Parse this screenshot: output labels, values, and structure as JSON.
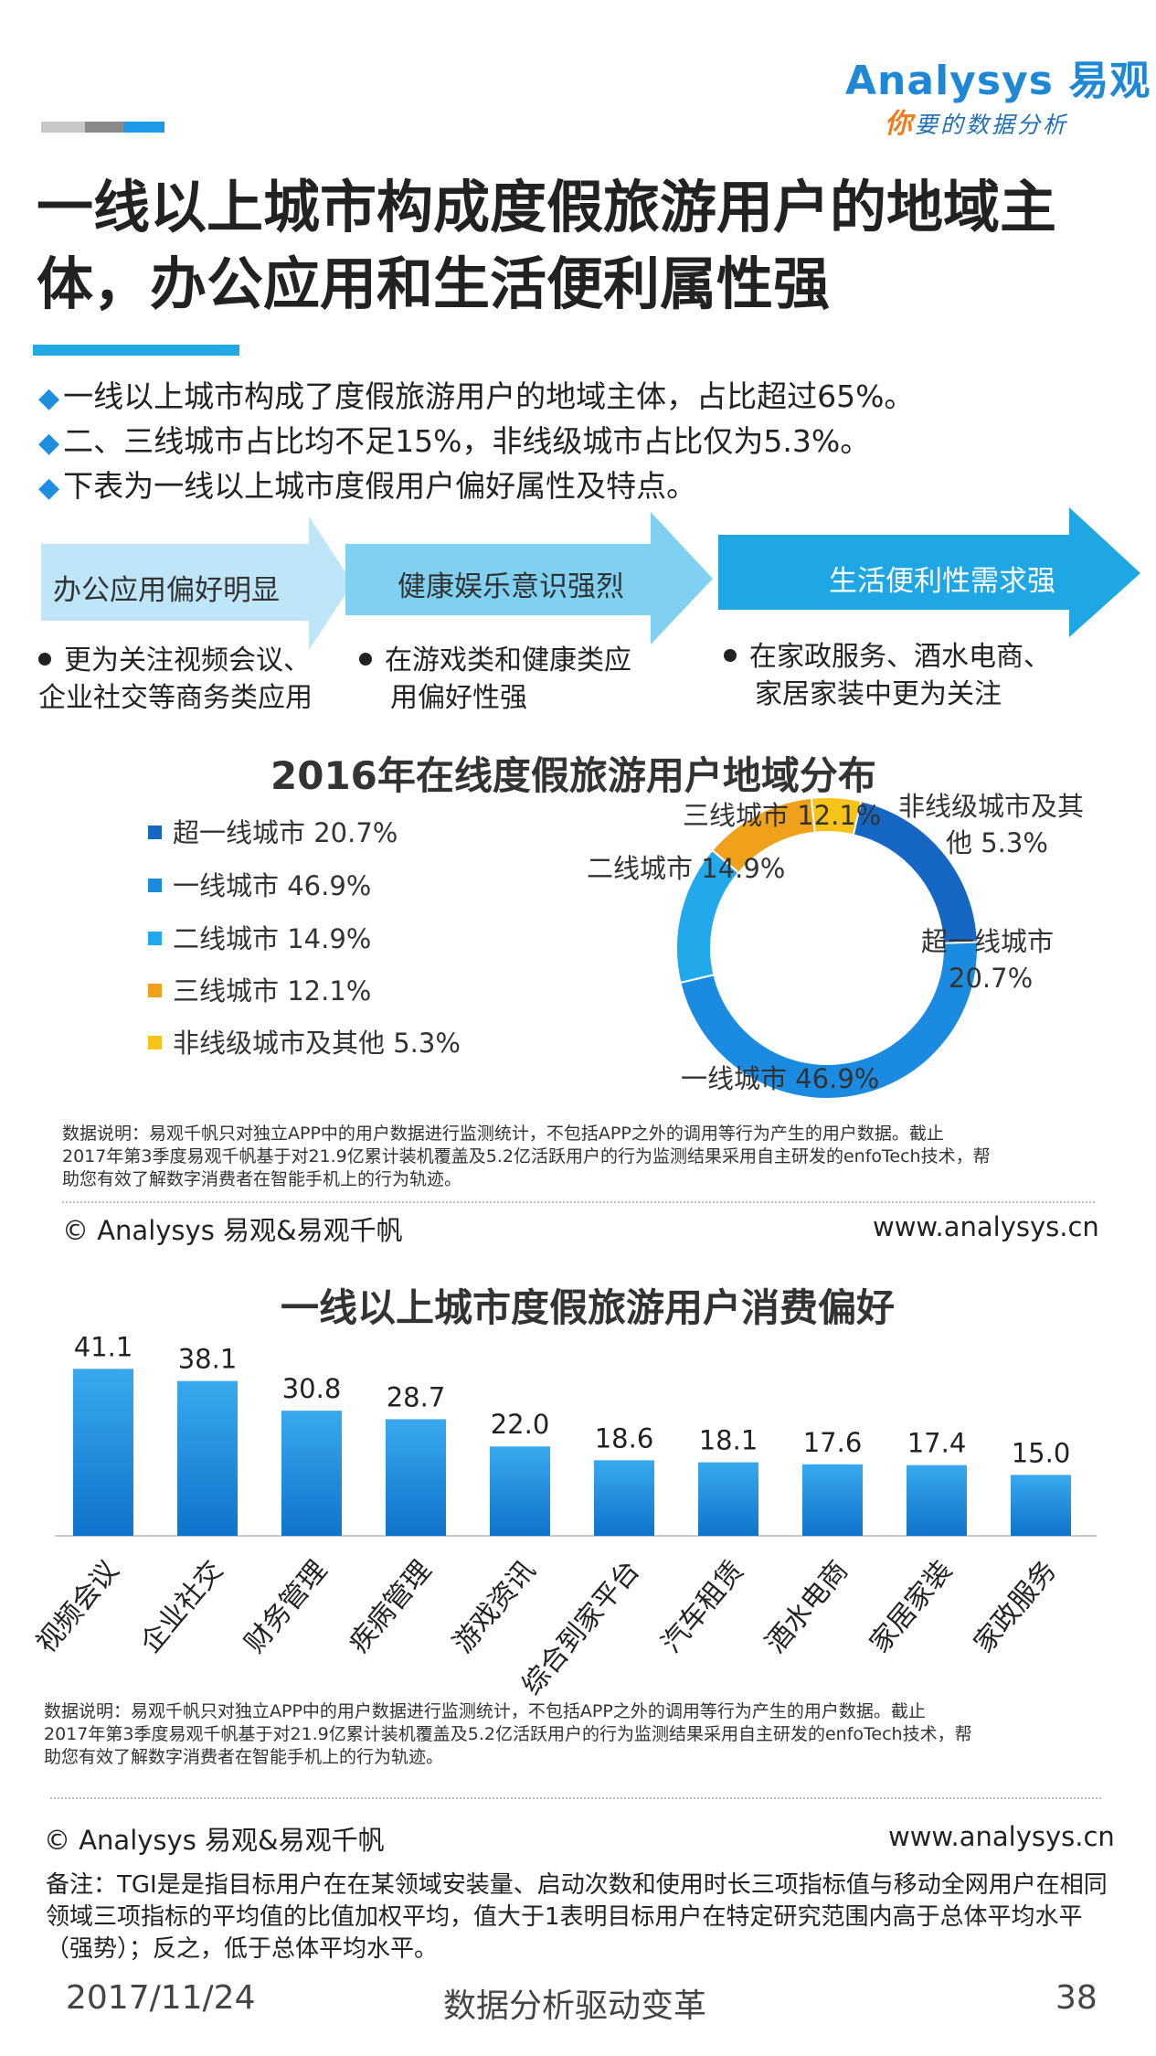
{
  "brand": {
    "logo": "Analysys 易观",
    "slogan_first": "你",
    "slogan_rest": "要的数据分析",
    "colors": {
      "primary": "#1e88d6",
      "accent": "#f07d1d"
    }
  },
  "title": "一线以上城市构成度假旅游用户的地域主体，办公应用和生活便利属性强",
  "bullets": [
    "一线以上城市构成了度假旅游用户的地域主体，占比超过65%。",
    "二、三线城市占比均不足15%，非线级城市占比仅为5.3%。",
    "下表为一线以上城市度假用户偏好属性及特点。"
  ],
  "bullet_marker": "◆",
  "features": [
    {
      "label": "办公应用偏好明显",
      "points": [
        "更为关注视频会议、",
        "企业社交等商务类应用"
      ],
      "color": "#bfe6f8"
    },
    {
      "label": "健康娱乐意识强烈",
      "points": [
        "在游戏类和健康类应",
        "用偏好性强"
      ],
      "color": "#7fd0f1"
    },
    {
      "label": "生活便利性需求强",
      "points": [
        "在家政服务、酒水电商、",
        "家居家装中更为关注"
      ],
      "color": "#1fa6e4"
    }
  ],
  "chart_data": [
    {
      "type": "pie",
      "donut": true,
      "title": "2016年在线度假旅游用户地域分布",
      "labels": [
        "超一线城市",
        "一线城市",
        "二线城市",
        "三线城市",
        "非线级城市及其他"
      ],
      "values": [
        20.7,
        46.9,
        14.9,
        12.1,
        5.3
      ],
      "unit": "%",
      "colors": [
        "#1666c4",
        "#1a8be0",
        "#21a9ec",
        "#f0a11c",
        "#f7c319"
      ],
      "legend": [
        "超一线城市 20.7%",
        "一线城市 46.9%",
        "二线城市 14.9%",
        "三线城市 12.1%",
        "非线级城市及其他 5.3%"
      ],
      "legend_position": "left",
      "slice_labels": {
        "super_tier1": [
          "超一线城市",
          "20.7%"
        ],
        "tier1": "一线城市 46.9%",
        "tier2": "二线城市 14.9%",
        "tier3": "三线城市 12.1%",
        "non_tier": [
          "非线级城市及其",
          "他 5.3%"
        ]
      }
    },
    {
      "type": "bar",
      "title": "一线以上城市度假旅游用户消费偏好",
      "categories": [
        "视频会议",
        "企业社交",
        "财务管理",
        "疾病管理",
        "游戏资讯",
        "综合到家平台",
        "汽车租赁",
        "酒水电商",
        "家居家装",
        "家政服务"
      ],
      "values": [
        41.1,
        38.1,
        30.8,
        28.7,
        22.0,
        18.6,
        18.1,
        17.6,
        17.4,
        15.0
      ],
      "value_labels": [
        "41.1",
        "38.1",
        "30.8",
        "28.7",
        "22.0",
        "18.6",
        "18.1",
        "17.6",
        "17.4",
        "15.0"
      ],
      "ylim": [
        0,
        45
      ],
      "grid": false,
      "colors": [
        "#39a9ee",
        "#0f74cc"
      ]
    }
  ],
  "notes": {
    "source_lines": [
      "数据说明：易观千帆只对独立APP中的用户数据进行监测统计，不包括APP之外的调用等行为产生的用户数据。截止",
      "2017年第3季度易观千帆基于对21.9亿累计装机覆盖及5.2亿活跃用户的行为监测结果采用自主研发的enfoTech技术，帮",
      "助您有效了解数字消费者在智能手机上的行为轨迹。"
    ],
    "copyright": "© Analysys 易观&易观千帆",
    "url": "www.analysys.cn"
  },
  "remark": "备注：TGI是是指目标用户在在某领域安装量、启动次数和使用时长三项指标值与移动全网用户在相同领域三项指标的平均值的比值加权平均，值大于1表明目标用户在特定研究范围内高于总体平均水平（强势）；反之，低于总体平均水平。",
  "footer": {
    "date": "2017/11/24",
    "center": "数据分析驱动变革",
    "page": "38"
  }
}
